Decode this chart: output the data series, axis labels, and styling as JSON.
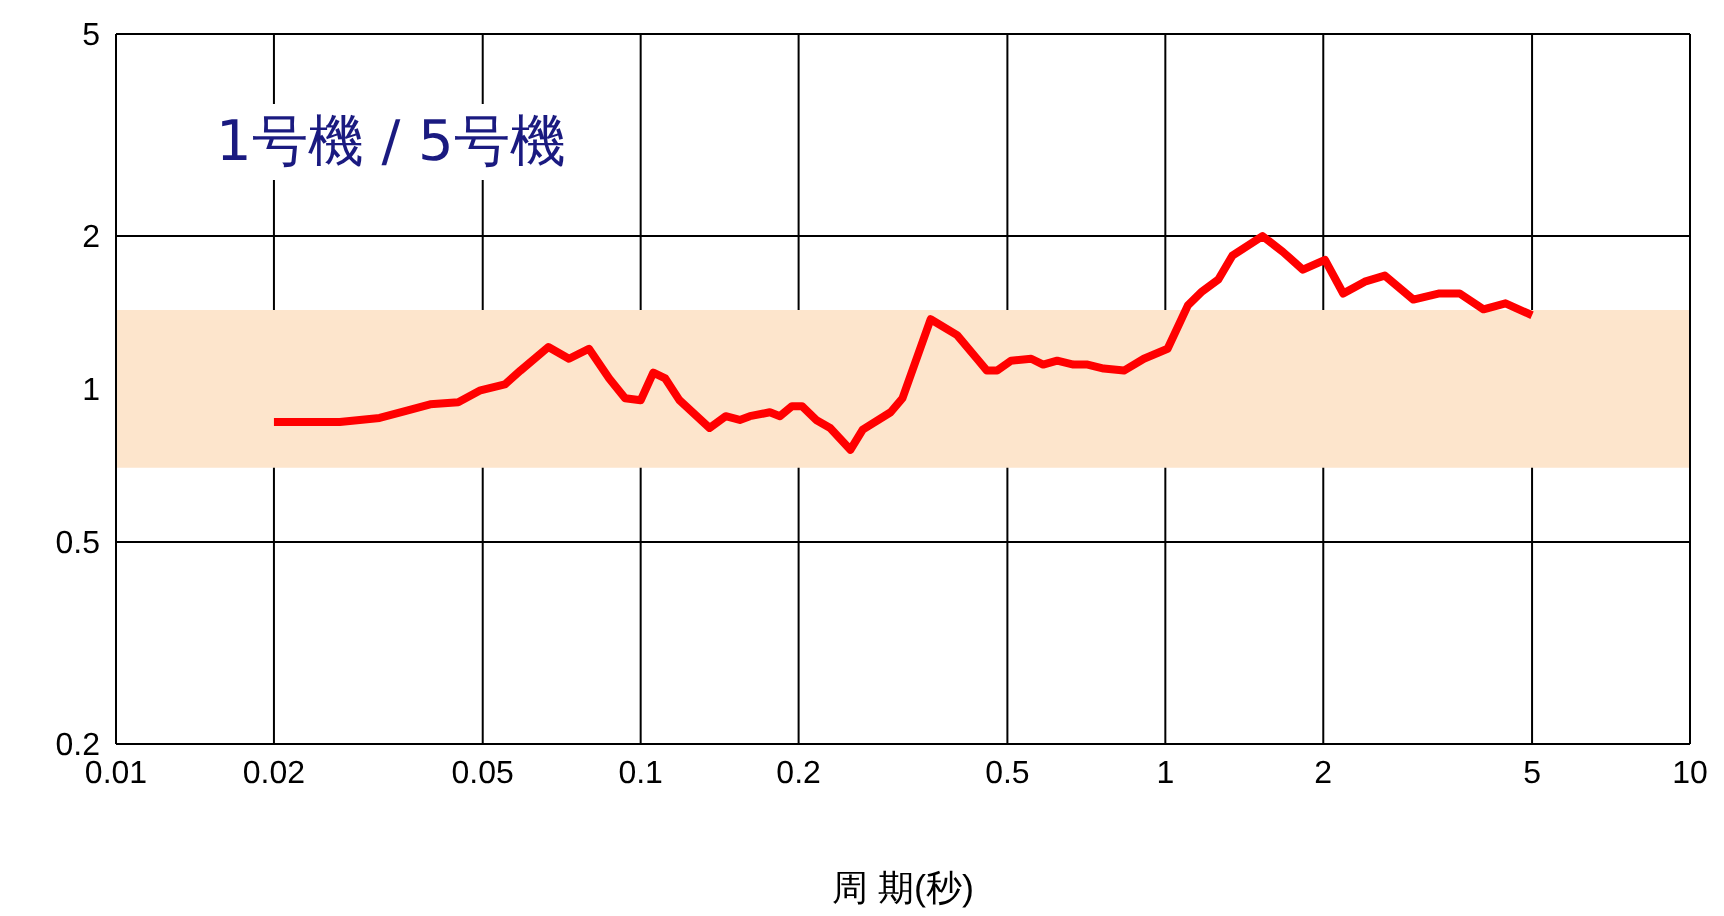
{
  "chart_data": {
    "type": "line",
    "title": "1号機 / 5号機",
    "xlabel": "周 期(秒)",
    "log": "xy",
    "grid": true,
    "legend": false,
    "marker": "none",
    "line_style": "solid",
    "xlim": [
      0.01,
      10
    ],
    "xticks": [
      0.01,
      0.02,
      0.05,
      0.1,
      0.2,
      0.5,
      1,
      2,
      5,
      10
    ],
    "ylim": [
      0.2,
      5
    ],
    "yticks": [
      0.2,
      0.5,
      1,
      2,
      5
    ],
    "bands": [
      {
        "axis": "y",
        "from": 0.7,
        "to": 1.43,
        "color": "#fde5cc"
      }
    ],
    "x": [
      0.02,
      0.0267,
      0.0318,
      0.036,
      0.0397,
      0.0449,
      0.0495,
      0.0551,
      0.059,
      0.0667,
      0.073,
      0.0797,
      0.0871,
      0.0934,
      0.1,
      0.1057,
      0.1114,
      0.1186,
      0.1353,
      0.1452,
      0.1545,
      0.1615,
      0.1763,
      0.1843,
      0.1943,
      0.203,
      0.216,
      0.2297,
      0.251,
      0.265,
      0.2995,
      0.3155,
      0.357,
      0.401,
      0.4375,
      0.457,
      0.478,
      0.508,
      0.555,
      0.585,
      0.622,
      0.668,
      0.711,
      0.763,
      0.834,
      0.91,
      1.01,
      1.104,
      1.175,
      1.262,
      1.342,
      1.532,
      1.675,
      1.829,
      2.015,
      2.183,
      2.4,
      2.62,
      2.97,
      3.33,
      3.64,
      4.04,
      4.45,
      5
    ],
    "series": [
      {
        "color": "#ff0000",
        "values": [
          0.861,
          0.861,
          0.877,
          0.908,
          0.933,
          0.942,
          0.994,
          1.021,
          1.087,
          1.21,
          1.147,
          1.2,
          1.049,
          0.959,
          0.95,
          1.077,
          1.049,
          0.95,
          0.838,
          0.884,
          0.869,
          0.884,
          0.9,
          0.884,
          0.925,
          0.925,
          0.869,
          0.838,
          0.759,
          0.832,
          0.9,
          0.959,
          1.372,
          1.277,
          1.147,
          1.087,
          1.087,
          1.137,
          1.147,
          1.117,
          1.137,
          1.117,
          1.117,
          1.097,
          1.087,
          1.147,
          1.2,
          1.461,
          1.556,
          1.643,
          1.83,
          2.0,
          1.862,
          1.718,
          1.796,
          1.542,
          1.627,
          1.672,
          1.5,
          1.542,
          1.542,
          1.435,
          1.475,
          1.397
        ]
      }
    ]
  }
}
